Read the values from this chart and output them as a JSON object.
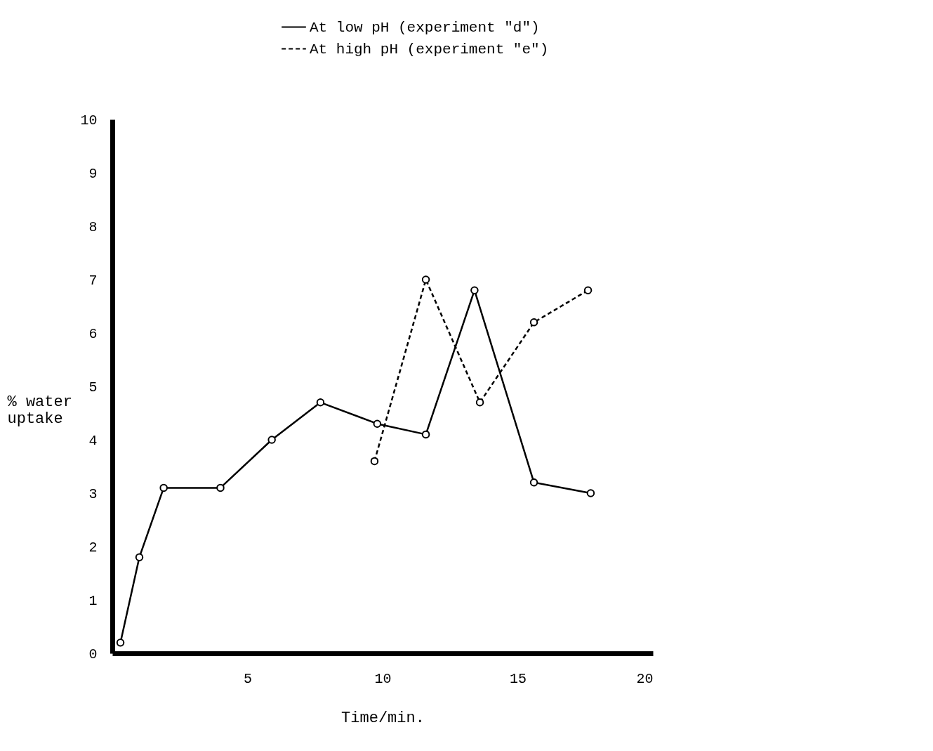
{
  "chart_data": {
    "type": "line",
    "xlabel": "Time/min.",
    "ylabel": "% water uptake",
    "xlim": [
      0,
      20
    ],
    "ylim": [
      0,
      10
    ],
    "xticks": [
      5,
      10,
      15,
      20
    ],
    "yticks": [
      0,
      1,
      2,
      3,
      4,
      5,
      6,
      7,
      8,
      9,
      10
    ],
    "marker": "circle",
    "grid": false,
    "legend": "top right",
    "series": [
      {
        "name": "At low  pH (experiment \"d\")",
        "color": "#000000",
        "line_style": "solid",
        "x": [
          0.3,
          1,
          1.9,
          4,
          5.9,
          7.7,
          9.8,
          11.6,
          13.4,
          15.6,
          17.7
        ],
        "values": [
          0.2,
          1.8,
          3.1,
          3.1,
          4.0,
          4.7,
          4.3,
          4.1,
          6.8,
          3.2,
          3.0
        ]
      },
      {
        "name": "At high pH (experiment \"e\")",
        "color": "#000000",
        "line_style": "dashed",
        "x": [
          9.7,
          11.6,
          13.6,
          15.6,
          17.6
        ],
        "values": [
          3.6,
          7.0,
          4.7,
          6.2,
          6.8
        ]
      }
    ]
  }
}
